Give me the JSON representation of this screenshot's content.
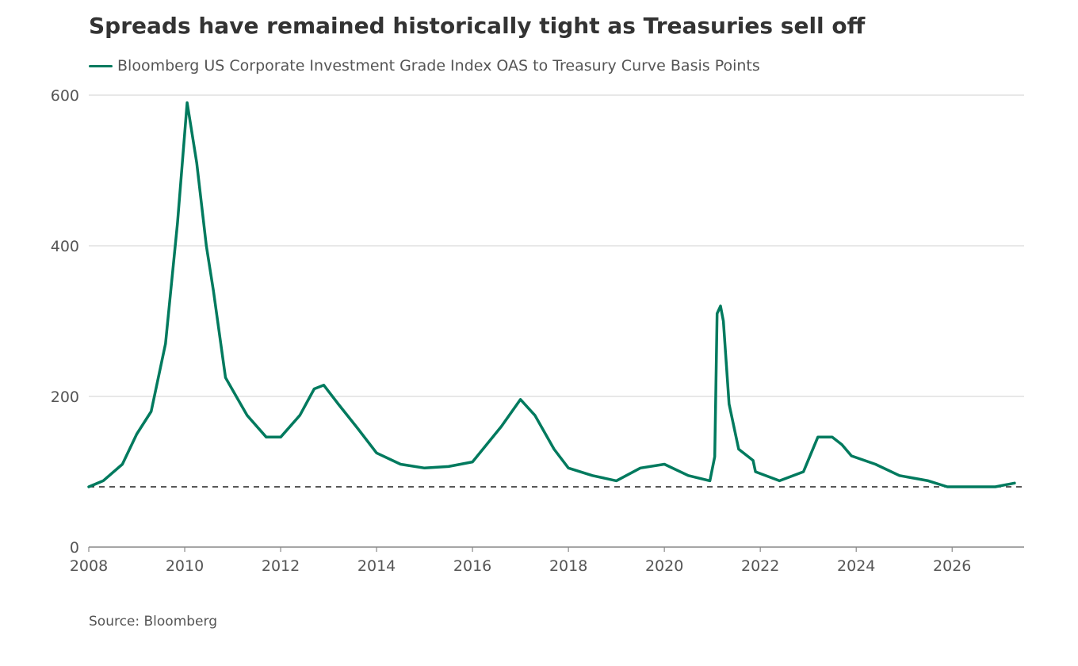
{
  "title": "Spreads have remained historically tight as Treasuries sell off",
  "source": "Source: Bloomberg",
  "colors": {
    "series": "#007a5e",
    "grid": "#d9d9d9",
    "axis": "#888888",
    "text": "#555555",
    "title": "#333333",
    "reference": "#222222"
  },
  "chart_data": {
    "type": "line",
    "title": "Spreads have remained historically tight as Treasuries sell off",
    "xlabel": "",
    "ylabel": "",
    "xlim": [
      2008,
      2027.5
    ],
    "ylim": [
      0,
      600
    ],
    "x_ticks": [
      2008,
      2010,
      2012,
      2014,
      2016,
      2018,
      2020,
      2022,
      2024,
      2026
    ],
    "y_ticks": [
      0,
      200,
      400,
      600
    ],
    "grid": true,
    "legend_position": "top-left",
    "reference_line": {
      "y": 80,
      "style": "dashed"
    },
    "series": [
      {
        "name": "Bloomberg US Corporate Investment Grade Index OAS to Treasury Curve Basis Points",
        "x": [
          2008.0,
          2008.3,
          2008.7,
          2009.0,
          2009.3,
          2009.6,
          2009.85,
          2010.05,
          2010.25,
          2010.45,
          2010.6,
          2010.85,
          2011.3,
          2011.7,
          2012.0,
          2012.4,
          2012.7,
          2012.9,
          2013.2,
          2013.6,
          2014.0,
          2014.5,
          2015.0,
          2015.5,
          2016.0,
          2016.6,
          2017.0,
          2017.3,
          2017.7,
          2018.0,
          2018.5,
          2019.0,
          2019.5,
          2020.0,
          2020.5,
          2020.95,
          2021.05,
          2021.1,
          2021.17,
          2021.23,
          2021.35,
          2021.55,
          2021.85,
          2021.9,
          2022.4,
          2022.9,
          2023.2,
          2023.5,
          2023.7,
          2023.9,
          2024.4,
          2024.9,
          2025.5,
          2025.9,
          2026.5,
          2026.9,
          2027.3
        ],
        "y": [
          80,
          88,
          110,
          150,
          180,
          270,
          430,
          590,
          510,
          400,
          340,
          225,
          175,
          146,
          146,
          175,
          210,
          215,
          190,
          158,
          125,
          110,
          105,
          107,
          113,
          160,
          196,
          175,
          130,
          105,
          95,
          88,
          105,
          110,
          95,
          88,
          120,
          310,
          320,
          300,
          190,
          130,
          115,
          100,
          88,
          100,
          146,
          146,
          136,
          121,
          110,
          95,
          88,
          80,
          80,
          80,
          85
        ]
      }
    ]
  }
}
